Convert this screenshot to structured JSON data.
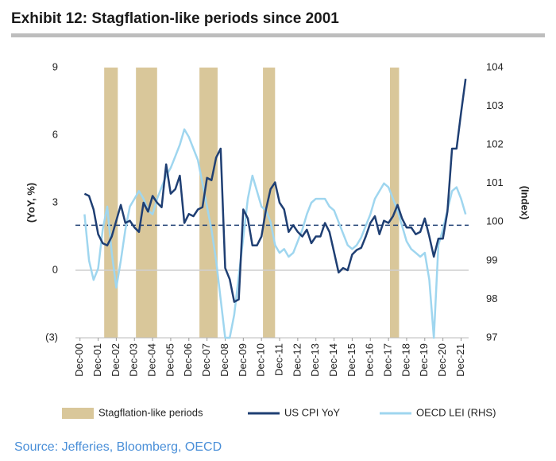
{
  "chart_data": {
    "type": "line",
    "title": "Exhibit 12: Stagflation-like periods since 2001",
    "source": "Source: Jefferies, Bloomberg, OECD",
    "ylabel": "(YoY, %)",
    "y2label": "(Index)",
    "xlim": [
      "2000-09",
      "2022-05"
    ],
    "ylim": [
      -3,
      9
    ],
    "yticks": [
      {
        "value": -3,
        "label": "(3)"
      },
      0,
      3,
      6,
      9
    ],
    "y2lim": [
      97,
      104
    ],
    "y2ticks": [
      97,
      98,
      99,
      100,
      101,
      102,
      103,
      104
    ],
    "reference_line": 2,
    "xticks": [
      {
        "value": "2000-12",
        "label": "Dec-00"
      },
      {
        "value": "2001-12",
        "label": "Dec-01"
      },
      {
        "value": "2002-12",
        "label": "Dec-02"
      },
      {
        "value": "2003-12",
        "label": "Dec-03"
      },
      {
        "value": "2004-12",
        "label": "Dec-04"
      },
      {
        "value": "2005-12",
        "label": "Dec-05"
      },
      {
        "value": "2006-12",
        "label": "Dec-06"
      },
      {
        "value": "2007-12",
        "label": "Dec-07"
      },
      {
        "value": "2008-12",
        "label": "Dec-08"
      },
      {
        "value": "2009-12",
        "label": "Dec-09"
      },
      {
        "value": "2010-12",
        "label": "Dec-10"
      },
      {
        "value": "2011-12",
        "label": "Dec-11"
      },
      {
        "value": "2012-12",
        "label": "Dec-12"
      },
      {
        "value": "2013-12",
        "label": "Dec-13"
      },
      {
        "value": "2014-12",
        "label": "Dec-14"
      },
      {
        "value": "2015-12",
        "label": "Dec-15"
      },
      {
        "value": "2016-12",
        "label": "Dec-16"
      },
      {
        "value": "2017-12",
        "label": "Dec-17"
      },
      {
        "value": "2018-12",
        "label": "Dec-18"
      },
      {
        "value": "2019-12",
        "label": "Dec-19"
      },
      {
        "value": "2020-12",
        "label": "Dec-20"
      },
      {
        "value": "2021-12",
        "label": "Dec-21"
      }
    ],
    "shading": {
      "name": "Stagflation-like periods",
      "color": "#d9c79a",
      "periods": [
        {
          "start": "2002-04",
          "end": "2003-01"
        },
        {
          "start": "2004-01",
          "end": "2005-03"
        },
        {
          "start": "2007-07",
          "end": "2008-07"
        },
        {
          "start": "2011-01",
          "end": "2011-09"
        },
        {
          "start": "2018-01",
          "end": "2018-07"
        }
      ]
    },
    "x": [
      "2001-03",
      "2001-06",
      "2001-09",
      "2001-12",
      "2002-03",
      "2002-06",
      "2002-09",
      "2002-12",
      "2003-03",
      "2003-06",
      "2003-09",
      "2003-12",
      "2004-03",
      "2004-06",
      "2004-09",
      "2004-12",
      "2005-03",
      "2005-06",
      "2005-09",
      "2005-12",
      "2006-03",
      "2006-06",
      "2006-09",
      "2006-12",
      "2007-03",
      "2007-06",
      "2007-09",
      "2007-12",
      "2008-03",
      "2008-06",
      "2008-09",
      "2008-12",
      "2009-03",
      "2009-06",
      "2009-09",
      "2009-12",
      "2010-03",
      "2010-06",
      "2010-09",
      "2010-12",
      "2011-03",
      "2011-06",
      "2011-09",
      "2011-12",
      "2012-03",
      "2012-06",
      "2012-09",
      "2012-12",
      "2013-03",
      "2013-06",
      "2013-09",
      "2013-12",
      "2014-03",
      "2014-06",
      "2014-09",
      "2014-12",
      "2015-03",
      "2015-06",
      "2015-09",
      "2015-12",
      "2016-03",
      "2016-06",
      "2016-09",
      "2016-12",
      "2017-03",
      "2017-06",
      "2017-09",
      "2017-12",
      "2018-03",
      "2018-06",
      "2018-09",
      "2018-12",
      "2019-03",
      "2019-06",
      "2019-09",
      "2019-12",
      "2020-03",
      "2020-06",
      "2020-09",
      "2020-12",
      "2021-03",
      "2021-06",
      "2021-09",
      "2021-12",
      "2022-03"
    ],
    "series": [
      {
        "name": "US CPI YoY",
        "color": "#1f3f73",
        "values": [
          3.4,
          3.3,
          2.7,
          1.6,
          1.2,
          1.1,
          1.5,
          2.2,
          2.9,
          2.1,
          2.2,
          1.9,
          1.7,
          3.0,
          2.6,
          3.3,
          3.0,
          2.8,
          4.7,
          3.4,
          3.6,
          4.2,
          2.1,
          2.5,
          2.4,
          2.7,
          2.8,
          4.1,
          4.0,
          5.0,
          5.4,
          0.1,
          -0.4,
          -1.4,
          -1.3,
          2.7,
          2.3,
          1.1,
          1.1,
          1.5,
          2.7,
          3.6,
          3.9,
          3.0,
          2.7,
          1.7,
          2.0,
          1.7,
          1.5,
          1.8,
          1.2,
          1.5,
          1.5,
          2.1,
          1.7,
          0.8,
          -0.1,
          0.1,
          0.0,
          0.7,
          0.9,
          1.0,
          1.5,
          2.1,
          2.4,
          1.6,
          2.2,
          2.1,
          2.4,
          2.9,
          2.3,
          1.9,
          1.9,
          1.6,
          1.7,
          2.3,
          1.5,
          0.6,
          1.4,
          1.4,
          2.6,
          5.4,
          5.4,
          7.0,
          8.5
        ]
      },
      {
        "name": "OECD LEI (RHS)",
        "color": "#9fd6ef",
        "axis": "y2",
        "values": [
          100.2,
          99.0,
          98.5,
          98.8,
          99.8,
          100.4,
          99.2,
          98.3,
          99.0,
          99.8,
          100.4,
          100.6,
          100.8,
          100.6,
          100.3,
          100.2,
          100.6,
          100.9,
          101.2,
          101.4,
          101.7,
          102.0,
          102.4,
          102.2,
          101.9,
          101.6,
          101.0,
          100.4,
          99.8,
          99.0,
          98.0,
          97.0,
          97.0,
          97.6,
          98.6,
          99.6,
          100.6,
          101.2,
          100.8,
          100.4,
          100.3,
          100.0,
          99.4,
          99.2,
          99.3,
          99.1,
          99.2,
          99.5,
          99.8,
          100.2,
          100.5,
          100.6,
          100.6,
          100.6,
          100.4,
          100.3,
          100.0,
          99.7,
          99.4,
          99.3,
          99.4,
          99.6,
          99.9,
          100.2,
          100.6,
          100.8,
          101.0,
          100.9,
          100.6,
          100.3,
          99.9,
          99.5,
          99.3,
          99.2,
          99.1,
          99.2,
          98.5,
          97.0,
          99.4,
          99.8,
          100.3,
          100.8,
          100.9,
          100.6,
          100.2
        ]
      }
    ]
  }
}
